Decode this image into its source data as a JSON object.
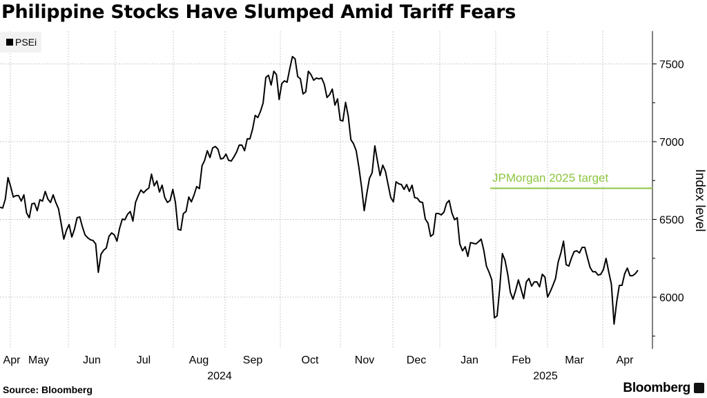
{
  "title": "Philippine Stocks Have Slumped Amid Tariff Fears",
  "source": "Source: Bloomberg",
  "logo": "Bloomberg",
  "chart_data": {
    "type": "line",
    "title": "Philippine Stocks Have Slumped Amid Tariff Fears",
    "xlabel": "",
    "ylabel": "Index level",
    "ylim": [
      5667,
      7711
    ],
    "yticks": [
      "6000",
      "6500",
      "7000",
      "7500"
    ],
    "ytick_values": [
      6000,
      6500,
      7000,
      7500
    ],
    "minor_ytick_values": [
      5750,
      6250,
      6750,
      7250
    ],
    "grid": true,
    "legend_placement": "top-left",
    "x_range": "Apr 2024 - Apr 2025 (daily)",
    "month_labels": [
      "Apr",
      "May",
      "Jun",
      "Jul",
      "Aug",
      "Sep",
      "Oct",
      "Nov",
      "Dec",
      "Jan",
      "Feb",
      "Mar",
      "Apr"
    ],
    "year_labels": [
      "2024",
      "2025"
    ],
    "series": [
      {
        "name": "PSEi",
        "color": "#000000",
        "values": [
          6578,
          6573,
          6631,
          6769,
          6711,
          6644,
          6653,
          6653,
          6618,
          6658,
          6542,
          6511,
          6600,
          6604,
          6556,
          6627,
          6618,
          6680,
          6631,
          6609,
          6658,
          6609,
          6569,
          6476,
          6373,
          6431,
          6467,
          6387,
          6436,
          6511,
          6516,
          6453,
          6400,
          6382,
          6369,
          6364,
          6342,
          6160,
          6276,
          6302,
          6316,
          6391,
          6413,
          6400,
          6360,
          6444,
          6502,
          6498,
          6533,
          6551,
          6489,
          6609,
          6653,
          6689,
          6671,
          6689,
          6702,
          6791,
          6716,
          6747,
          6676,
          6720,
          6640,
          6609,
          6622,
          6693,
          6609,
          6436,
          6431,
          6538,
          6551,
          6644,
          6613,
          6658,
          6711,
          6698,
          6844,
          6880,
          6942,
          6898,
          6960,
          6969,
          6951,
          6889,
          6893,
          6920,
          6880,
          6875,
          6902,
          6933,
          6978,
          6978,
          6942,
          7018,
          7018,
          7080,
          7169,
          7155,
          7195,
          7249,
          7413,
          7427,
          7364,
          7453,
          7431,
          7271,
          7373,
          7391,
          7382,
          7467,
          7547,
          7533,
          7418,
          7404,
          7307,
          7320,
          7453,
          7431,
          7395,
          7409,
          7404,
          7409,
          7369,
          7284,
          7302,
          7338,
          7235,
          7275,
          7138,
          7133,
          7253,
          7164,
          7013,
          6987,
          6942,
          6835,
          6711,
          6556,
          6667,
          6764,
          6800,
          6973,
          6875,
          6782,
          6849,
          6809,
          6724,
          6640,
          6613,
          6742,
          6729,
          6724,
          6693,
          6724,
          6680,
          6720,
          6640,
          6636,
          6613,
          6609,
          6502,
          6476,
          6391,
          6404,
          6538,
          6538,
          6529,
          6547,
          6604,
          6622,
          6542,
          6498,
          6511,
          6342,
          6298,
          6324,
          6262,
          6351,
          6347,
          6342,
          6356,
          6373,
          6302,
          6200,
          6160,
          6111,
          5867,
          5880,
          6058,
          6280,
          6236,
          6147,
          6031,
          5987,
          6044,
          6111,
          6053,
          5991,
          6098,
          6120,
          6071,
          6098,
          6098,
          6067,
          6147,
          6129,
          6000,
          6036,
          6076,
          6120,
          6227,
          6284,
          6360,
          6209,
          6200,
          6253,
          6293,
          6298,
          6284,
          6320,
          6320,
          6253,
          6191,
          6164,
          6164,
          6142,
          6147,
          6178,
          6249,
          6164,
          6084,
          5827,
          5969,
          6076,
          6076,
          6151,
          6187,
          6138,
          6138,
          6151,
          6173
        ]
      }
    ],
    "annotations": [
      {
        "label": "JPMorgan 2025 target",
        "value": 6700,
        "color": "#8cc63f",
        "start": "late Jan 2025"
      }
    ]
  }
}
